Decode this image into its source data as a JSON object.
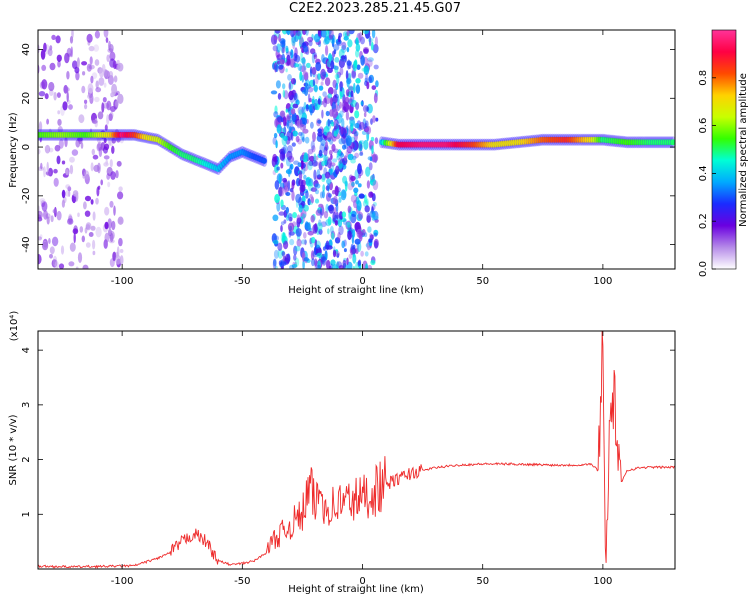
{
  "page": {
    "title": "C2E2.2023.285.21.45.G07"
  },
  "chart_data": [
    {
      "type": "heatmap",
      "title": "",
      "xlabel": "Height of straight line (km)",
      "ylabel": "Frequency (Hz)",
      "xlim": [
        -135,
        130
      ],
      "ylim": [
        -50,
        48
      ],
      "xticks": [
        -100,
        -50,
        0,
        50,
        100
      ],
      "yticks": [
        -40,
        -20,
        0,
        20,
        40
      ],
      "grid": false,
      "colorbar": {
        "label": "Normalized spectral amplitude",
        "range": [
          0,
          1
        ],
        "ticks": [
          0.0,
          0.2,
          0.4,
          0.6,
          0.8
        ],
        "colors": [
          "#ffffff",
          "#b58ae8",
          "#6a00e0",
          "#1a2cff",
          "#00aaff",
          "#00ffd5",
          "#33ff00",
          "#c8ff00",
          "#ffd200",
          "#ff4a00",
          "#ff0044",
          "#ff3399"
        ]
      },
      "ridge": [
        {
          "x": -135,
          "f": 5,
          "a": 0.55
        },
        {
          "x": -125,
          "f": 5,
          "a": 0.6
        },
        {
          "x": -115,
          "f": 5,
          "a": 0.55
        },
        {
          "x": -105,
          "f": 5,
          "a": 0.7
        },
        {
          "x": -100,
          "f": 5,
          "a": 0.95
        },
        {
          "x": -95,
          "f": 5,
          "a": 0.85
        },
        {
          "x": -90,
          "f": 4,
          "a": 0.7
        },
        {
          "x": -85,
          "f": 3,
          "a": 0.65
        },
        {
          "x": -80,
          "f": 0,
          "a": 0.55
        },
        {
          "x": -75,
          "f": -3,
          "a": 0.5
        },
        {
          "x": -70,
          "f": -5,
          "a": 0.5
        },
        {
          "x": -65,
          "f": -7,
          "a": 0.45
        },
        {
          "x": -60,
          "f": -9,
          "a": 0.4
        },
        {
          "x": -55,
          "f": -4,
          "a": 0.35
        },
        {
          "x": -50,
          "f": -2,
          "a": 0.35
        },
        {
          "x": -45,
          "f": -4,
          "a": 0.3
        },
        {
          "x": -40,
          "f": -6,
          "a": 0.3
        },
        {
          "x": 8,
          "f": 2,
          "a": 0.4
        },
        {
          "x": 15,
          "f": 1,
          "a": 0.9
        },
        {
          "x": 25,
          "f": 1,
          "a": 0.95
        },
        {
          "x": 35,
          "f": 1,
          "a": 0.95
        },
        {
          "x": 45,
          "f": 1,
          "a": 0.85
        },
        {
          "x": 55,
          "f": 1,
          "a": 0.7
        },
        {
          "x": 65,
          "f": 2,
          "a": 0.7
        },
        {
          "x": 75,
          "f": 3,
          "a": 0.8
        },
        {
          "x": 85,
          "f": 3,
          "a": 0.85
        },
        {
          "x": 95,
          "f": 3,
          "a": 0.7
        },
        {
          "x": 100,
          "f": 3,
          "a": 0.5
        },
        {
          "x": 110,
          "f": 2,
          "a": 0.55
        },
        {
          "x": 120,
          "f": 2,
          "a": 0.5
        },
        {
          "x": 130,
          "f": 2,
          "a": 0.5
        }
      ],
      "noise_regions": [
        {
          "x_from": -135,
          "x_to": -100,
          "f_from": -50,
          "f_to": 48,
          "a": 0.15
        },
        {
          "x_from": -37,
          "x_to": 6,
          "f_from": -50,
          "f_to": 48,
          "a": 0.35
        }
      ]
    },
    {
      "type": "line",
      "title": "",
      "xlabel": "Height of straight line (km)",
      "ylabel": "SNR (10 * v/v)",
      "yunit_label": "(x10⁴)",
      "xlim": [
        -135,
        130
      ],
      "ylim": [
        0,
        4.35
      ],
      "xticks": [
        -100,
        -50,
        0,
        50,
        100
      ],
      "yticks": [
        1,
        2,
        3,
        4
      ],
      "grid": false,
      "series": [
        {
          "color": "#ee2b2b",
          "points": [
            [
              -135,
              0.05
            ],
            [
              -120,
              0.04
            ],
            [
              -105,
              0.05
            ],
            [
              -95,
              0.06
            ],
            [
              -85,
              0.2
            ],
            [
              -80,
              0.3
            ],
            [
              -75,
              0.5
            ],
            [
              -70,
              0.65
            ],
            [
              -65,
              0.5
            ],
            [
              -60,
              0.15
            ],
            [
              -55,
              0.08
            ],
            [
              -50,
              0.1
            ],
            [
              -45,
              0.15
            ],
            [
              -40,
              0.3
            ],
            [
              -38,
              0.5
            ],
            [
              -35,
              0.6
            ],
            [
              -30,
              0.8
            ],
            [
              -25,
              1.0
            ],
            [
              -22,
              1.5
            ],
            [
              -20,
              1.2
            ],
            [
              -17,
              1.4
            ],
            [
              -15,
              1.1
            ],
            [
              -10,
              1.2
            ],
            [
              -5,
              1.25
            ],
            [
              0,
              1.3
            ],
            [
              5,
              1.45
            ],
            [
              10,
              1.55
            ],
            [
              15,
              1.65
            ],
            [
              20,
              1.75
            ],
            [
              25,
              1.8
            ],
            [
              30,
              1.85
            ],
            [
              40,
              1.9
            ],
            [
              50,
              1.92
            ],
            [
              60,
              1.92
            ],
            [
              70,
              1.91
            ],
            [
              80,
              1.9
            ],
            [
              90,
              1.9
            ],
            [
              95,
              1.92
            ],
            [
              98,
              1.8
            ],
            [
              100,
              4.35
            ],
            [
              101,
              0.1
            ],
            [
              103,
              2.8
            ],
            [
              105,
              3.1
            ],
            [
              107,
              1.5
            ],
            [
              110,
              1.8
            ],
            [
              115,
              1.85
            ],
            [
              120,
              1.86
            ],
            [
              130,
              1.86
            ]
          ]
        }
      ]
    }
  ]
}
